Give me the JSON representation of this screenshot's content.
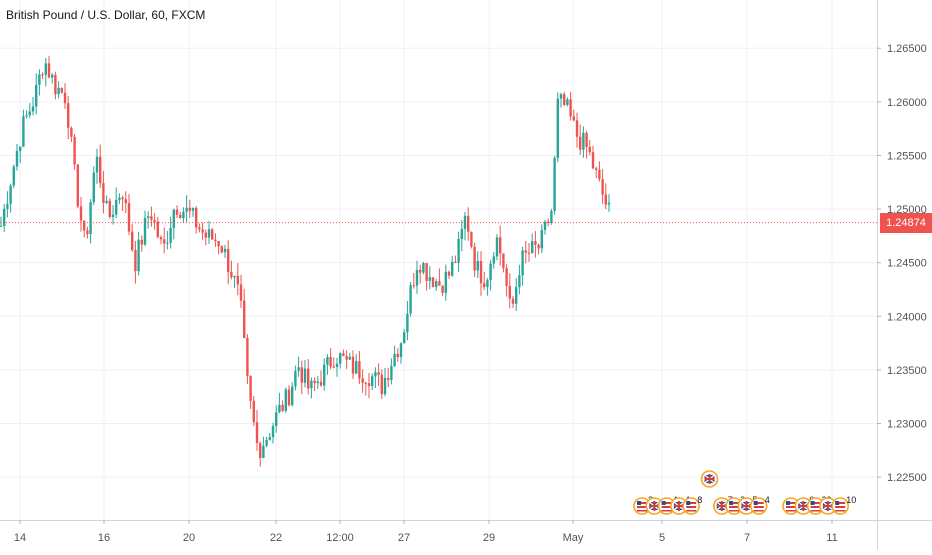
{
  "header": {
    "title": "British Pound / U.S. Dollar, 60, FXCM"
  },
  "colors": {
    "up": "#26a69a",
    "down": "#ef5350",
    "grid": "#eef0f4",
    "axis_text": "#50535e",
    "price_line": "#ef5350",
    "badge_ring": "#f5a623"
  },
  "current_price": {
    "value": 1.24874,
    "label": "1.24874"
  },
  "chart_data": {
    "type": "candlestick",
    "symbol": "GBPUSD",
    "timeframe": "60",
    "ylim": [
      1.221,
      1.2695
    ],
    "y_ticks": [
      {
        "value": 1.265,
        "label": "1.26500"
      },
      {
        "value": 1.26,
        "label": "1.26000"
      },
      {
        "value": 1.255,
        "label": "1.25500"
      },
      {
        "value": 1.25,
        "label": "1.25000"
      },
      {
        "value": 1.245,
        "label": "1.24500"
      },
      {
        "value": 1.24,
        "label": "1.24000"
      },
      {
        "value": 1.235,
        "label": "1.23500"
      },
      {
        "value": 1.23,
        "label": "1.23000"
      },
      {
        "value": 1.225,
        "label": "1.22500"
      }
    ],
    "x_ticks": [
      "14",
      "16",
      "20",
      "22",
      "12:00",
      "27",
      "29",
      "May",
      "5",
      "7",
      "11"
    ],
    "anchors": [
      [
        0,
        1.248
      ],
      [
        10,
        1.2525
      ],
      [
        22,
        1.2575
      ],
      [
        35,
        1.2605
      ],
      [
        44,
        1.264
      ],
      [
        55,
        1.2615
      ],
      [
        66,
        1.2605
      ],
      [
        74,
        1.2535
      ],
      [
        85,
        1.2465
      ],
      [
        96,
        1.255
      ],
      [
        108,
        1.249
      ],
      [
        122,
        1.252
      ],
      [
        135,
        1.245
      ],
      [
        150,
        1.25
      ],
      [
        163,
        1.246
      ],
      [
        175,
        1.2505
      ],
      [
        190,
        1.2495
      ],
      [
        205,
        1.2475
      ],
      [
        220,
        1.247
      ],
      [
        232,
        1.244
      ],
      [
        240,
        1.2415
      ],
      [
        248,
        1.233
      ],
      [
        258,
        1.2275
      ],
      [
        268,
        1.229
      ],
      [
        278,
        1.231
      ],
      [
        288,
        1.2325
      ],
      [
        298,
        1.2355
      ],
      [
        310,
        1.233
      ],
      [
        322,
        1.2345
      ],
      [
        335,
        1.2365
      ],
      [
        348,
        1.2355
      ],
      [
        358,
        1.235
      ],
      [
        370,
        1.2345
      ],
      [
        382,
        1.2335
      ],
      [
        392,
        1.236
      ],
      [
        402,
        1.238
      ],
      [
        410,
        1.242
      ],
      [
        418,
        1.2455
      ],
      [
        428,
        1.244
      ],
      [
        440,
        1.243
      ],
      [
        450,
        1.244
      ],
      [
        458,
        1.246
      ],
      [
        466,
        1.2495
      ],
      [
        476,
        1.2445
      ],
      [
        486,
        1.2435
      ],
      [
        496,
        1.2475
      ],
      [
        503,
        1.245
      ],
      [
        511,
        1.24
      ],
      [
        520,
        1.245
      ],
      [
        530,
        1.246
      ],
      [
        540,
        1.2465
      ],
      [
        552,
        1.25
      ],
      [
        558,
        1.26
      ],
      [
        566,
        1.2595
      ],
      [
        576,
        1.257
      ],
      [
        588,
        1.2555
      ],
      [
        600,
        1.252
      ],
      [
        612,
        1.249
      ]
    ],
    "events": [
      {
        "country": "US",
        "count": "2",
        "row": 0
      },
      {
        "country": "UK",
        "count": "",
        "row": 0
      },
      {
        "country": "US",
        "count": "4",
        "row": 0
      },
      {
        "country": "UK",
        "count": "4",
        "row": 0
      },
      {
        "country": "US",
        "count": "8",
        "row": 0
      },
      {
        "country": "UK",
        "count": "",
        "row": 1
      },
      {
        "country": "UK",
        "count": "7",
        "row": 0
      },
      {
        "country": "US",
        "count": "2",
        "row": 0
      },
      {
        "country": "UK",
        "count": "5",
        "row": 0
      },
      {
        "country": "US",
        "count": "4",
        "row": 0
      },
      {
        "country": "US",
        "count": "",
        "row": 0
      },
      {
        "country": "UK",
        "count": "6",
        "row": 0
      },
      {
        "country": "US",
        "count": "29",
        "row": 0
      },
      {
        "country": "UK",
        "count": "",
        "row": 0
      },
      {
        "country": "US",
        "count": "10",
        "row": 0
      }
    ]
  }
}
